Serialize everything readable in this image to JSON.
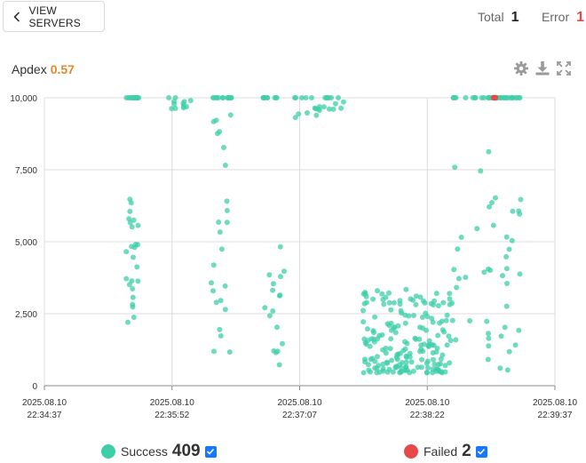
{
  "header": {
    "back_label": "VIEW SERVERS",
    "total_label": "Total",
    "total_value": "1",
    "error_label": "Error",
    "error_value": "1"
  },
  "apdex": {
    "label": "Apdex",
    "value": "0.57"
  },
  "colors": {
    "success": "#3ecfa8",
    "failed": "#e84848",
    "apdex": "#e8862a",
    "error": "#e84848",
    "checkbox": "#1677ff"
  },
  "icons": {
    "back": "chevron-left-icon",
    "settings": "gear-icon",
    "download": "download-icon",
    "expand": "expand-icon"
  },
  "legend": {
    "success_label": "Success",
    "success_count": "409",
    "failed_label": "Failed",
    "failed_count": "2"
  },
  "chart_data": {
    "type": "scatter",
    "x_unit": "time (2025.08.10)",
    "x_tick_labels": [
      [
        "2025.08.10",
        "22:34:37"
      ],
      [
        "2025.08.10",
        "22:35:52"
      ],
      [
        "2025.08.10",
        "22:37:07"
      ],
      [
        "2025.08.10",
        "22:38:22"
      ],
      [
        "2025.08.10",
        "22:39:37"
      ]
    ],
    "x_ticks_seconds": [
      0,
      75,
      150,
      225,
      300
    ],
    "xlim_seconds": [
      0,
      300
    ],
    "ylim": [
      0,
      10000
    ],
    "y_ticks": [
      0,
      2500,
      5000,
      7500,
      10000
    ],
    "y_tick_labels": [
      "0",
      "2,500",
      "5,000",
      "7,500",
      "10,000"
    ],
    "grid": true,
    "series": [
      {
        "name": "Success",
        "clusters": [
          {
            "x": [
              48,
              56
            ],
            "y_top": 10000,
            "y_spread": [
              2200,
              6500
            ],
            "n": 40
          },
          {
            "x": [
              73,
              86
            ],
            "y_top": 10000,
            "y_spread": [
              9600,
              10000
            ],
            "n": 12
          },
          {
            "x": [
              98,
              110
            ],
            "y_top": 10000,
            "y_spread": [
              1100,
              9500
            ],
            "n": 38
          },
          {
            "x": [
              128,
              141
            ],
            "y_top": 10000,
            "y_spread": [
              650,
              5100
            ],
            "n": 26
          },
          {
            "x": [
              147,
              162
            ],
            "y_top": 10000,
            "y_spread": [
              9300,
              10000
            ],
            "n": 14
          },
          {
            "x": [
              164,
              176
            ],
            "y_top": 10000,
            "y_spread": [
              9600,
              10000
            ],
            "n": 12
          },
          {
            "x": [
              187,
              240
            ],
            "y_top": 3400,
            "y_spread": [
              450,
              3400
            ],
            "n": 190
          },
          {
            "x": [
              240,
              265
            ],
            "y_top": 10000,
            "y_spread": [
              800,
              8600
            ],
            "n": 26
          },
          {
            "x": [
              260,
              280
            ],
            "y_top": 10000,
            "y_spread": [
              500,
              6700
            ],
            "n": 51
          }
        ]
      },
      {
        "name": "Failed",
        "points": [
          [
            264,
            10000
          ],
          [
            265,
            10000
          ]
        ]
      }
    ]
  }
}
